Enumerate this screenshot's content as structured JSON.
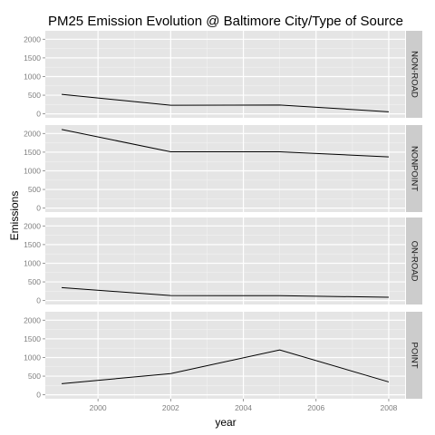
{
  "chart_data": {
    "type": "line",
    "title": "PM25 Emission Evolution @ Baltimore City/Type of Source",
    "xlabel": "year",
    "ylabel": "Emissions",
    "x": [
      1999,
      2002,
      2005,
      2008
    ],
    "xticks": [
      2000,
      2002,
      2004,
      2006,
      2008
    ],
    "xlim": [
      1998.55,
      2008.45
    ],
    "yticks": [
      0,
      500,
      1000,
      1500,
      2000
    ],
    "ylim": [
      -106,
      2226
    ],
    "grid": true,
    "facets": [
      {
        "name": "NON-ROAD",
        "values": [
          522.94,
          232.0,
          237.0,
          55.82
        ]
      },
      {
        "name": "NONPOINT",
        "values": [
          2107.6,
          1509.5,
          1509.5,
          1373.2
        ]
      },
      {
        "name": "ON-ROAD",
        "values": [
          346.82,
          134.31,
          130.43,
          88.28
        ]
      },
      {
        "name": "POINT",
        "values": [
          296.8,
          569.26,
          1202.49,
          344.98
        ]
      }
    ]
  }
}
